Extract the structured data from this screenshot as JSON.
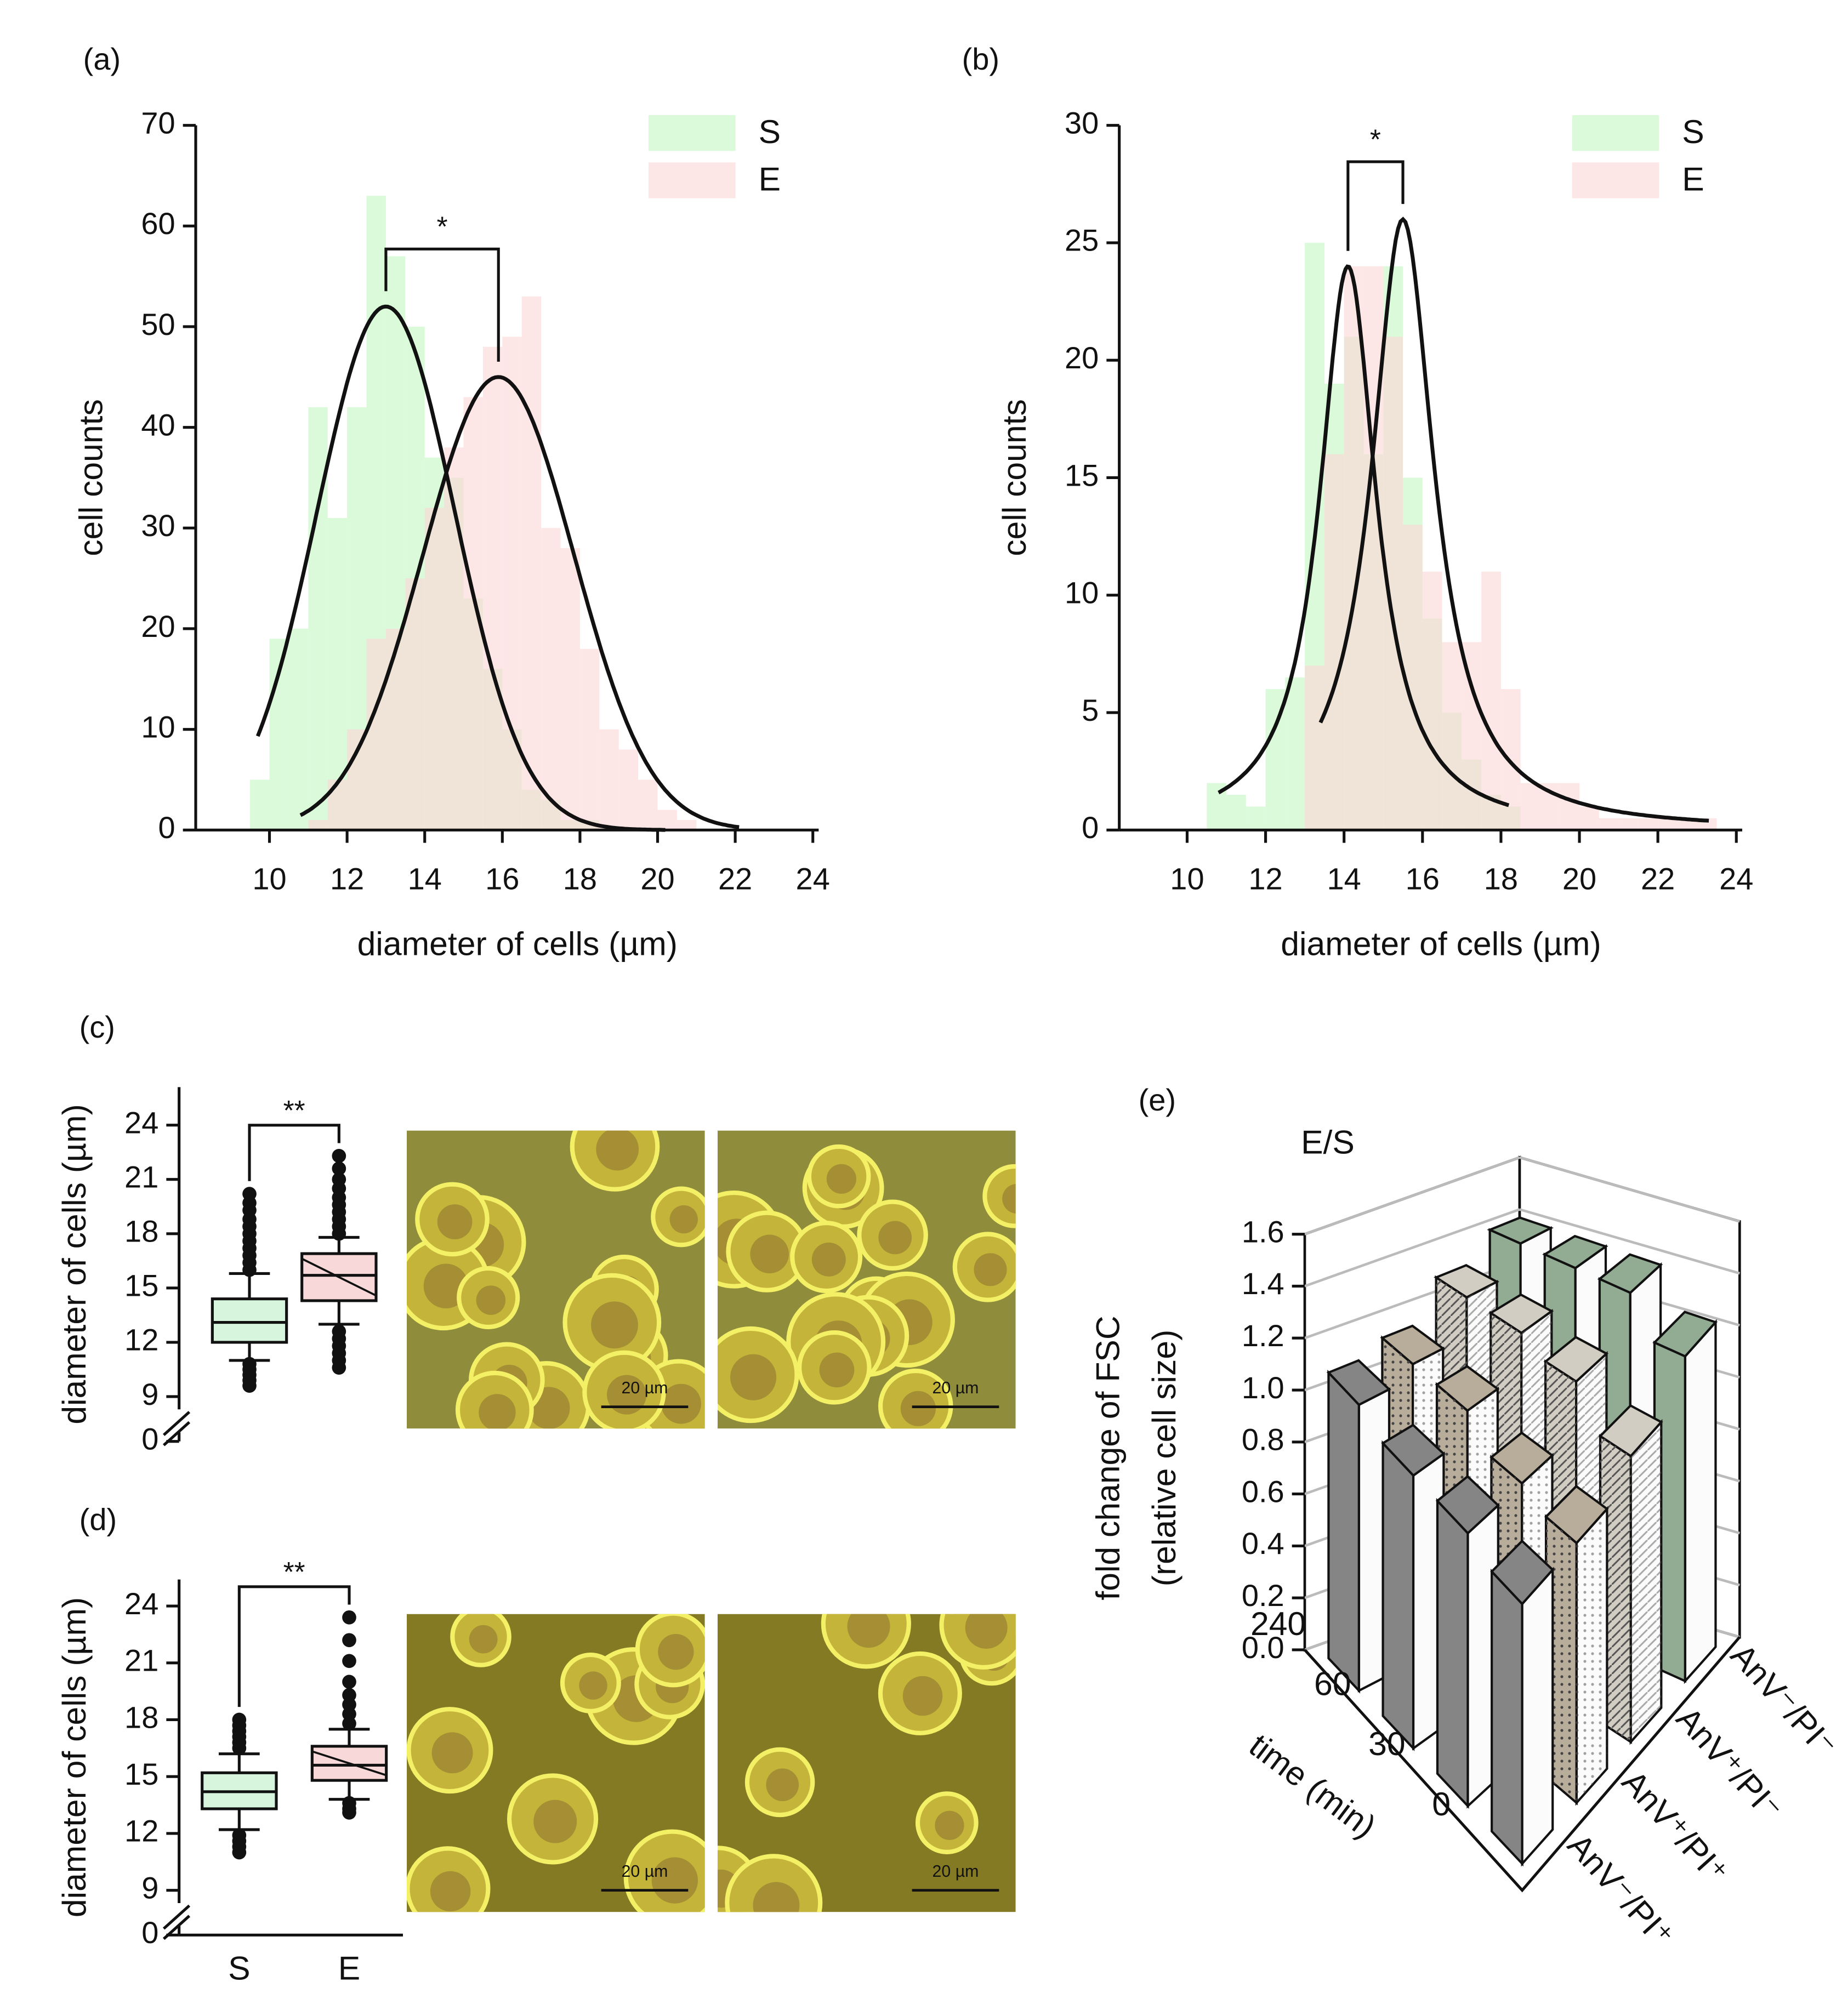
{
  "chart_data": [
    {
      "type": "histogram",
      "label": "(a)",
      "xlabel": "diameter of cells (µm)",
      "ylabel": "cell counts",
      "bins": [
        9.5,
        10,
        10.5,
        11,
        11.5,
        12,
        12.5,
        13,
        13.5,
        14,
        14.5,
        15,
        15.5,
        16,
        16.5,
        17,
        17.5,
        18,
        18.5,
        19,
        19.5,
        20,
        20.5,
        21
      ],
      "series": [
        {
          "name": "S",
          "color": "#c6f7c6",
          "values": [
            5,
            19,
            20,
            42,
            31,
            42,
            63,
            57,
            50,
            37,
            35,
            23,
            16,
            10,
            4,
            3,
            1,
            1,
            0,
            0,
            0,
            0,
            0
          ],
          "fit": {
            "shape": "gaussian",
            "center": 13,
            "peak": 52,
            "width": 1.78,
            "range": [
              9.7,
              20.2
            ]
          }
        },
        {
          "name": "E",
          "color": "#fcd9d9",
          "values": [
            0,
            0,
            0,
            1,
            5,
            10,
            19,
            20,
            25,
            32,
            38,
            43,
            48,
            49,
            53,
            30,
            28,
            18,
            10,
            8,
            5,
            2,
            1
          ],
          "fit": {
            "shape": "gaussian",
            "center": 15.9,
            "peak": 45,
            "width": 1.95,
            "range": [
              10.8,
              22.1
            ]
          }
        }
      ],
      "xlim": [
        8.1,
        24.15
      ],
      "ylim": [
        0,
        70
      ],
      "xticks": [
        10,
        12,
        14,
        16,
        18,
        20,
        22,
        24
      ],
      "yticks": [
        0,
        10,
        20,
        30,
        40,
        50,
        60,
        70
      ],
      "legend": "upper right",
      "significance": "*"
    },
    {
      "type": "histogram",
      "label": "(b)",
      "xlabel": "diameter of cells (µm)",
      "ylabel": "cell counts",
      "bins": [
        10.5,
        11,
        11.5,
        12,
        12.5,
        13,
        13.5,
        14,
        14.5,
        15,
        15.5,
        16,
        16.5,
        17,
        17.5,
        18,
        18.5,
        19,
        19.5,
        20,
        20.5,
        21,
        21.5,
        22,
        22.5,
        23,
        23.5
      ],
      "series": [
        {
          "name": "S",
          "color": "#c6f7c6",
          "values": [
            2,
            1.5,
            1,
            6,
            6.5,
            25,
            19,
            21,
            16,
            24,
            15,
            9,
            5,
            3,
            1.5,
            1,
            0,
            0,
            0,
            0,
            0,
            0,
            0,
            0,
            0,
            0
          ],
          "fit": {
            "shape": "lorentzian",
            "center": 14.1,
            "peak": 24,
            "width": 0.88,
            "range": [
              10.8,
              18.2
            ]
          }
        },
        {
          "name": "E",
          "color": "#fcd9d9",
          "values": [
            0,
            0,
            0,
            0,
            0,
            7,
            16,
            24,
            24,
            21,
            13,
            11,
            8,
            8,
            11,
            6,
            2,
            2,
            2,
            1,
            0.5,
            0.5,
            0.5,
            0.5,
            0.5,
            0.5
          ],
          "fit": {
            "shape": "lorentzian",
            "center": 15.5,
            "peak": 26,
            "width": 0.97,
            "range": [
              13.4,
              23.3
            ]
          }
        }
      ],
      "xlim": [
        8.27,
        24.15
      ],
      "ylim": [
        0,
        30
      ],
      "xticks": [
        10,
        12,
        14,
        16,
        18,
        20,
        22,
        24
      ],
      "yticks": [
        0,
        5,
        10,
        15,
        20,
        25,
        30
      ],
      "legend": "upper right",
      "significance": "*"
    },
    {
      "type": "box",
      "label": "(c)",
      "ylabel": "diameter of cells (µm)",
      "categories": [
        null,
        null
      ],
      "boxes": [
        {
          "min": 11.0,
          "q1": 12.0,
          "median": 13.1,
          "q3": 14.4,
          "max": 15.8,
          "color": "#d6f5dc",
          "outliers": [
            16.0,
            16.4,
            16.8,
            17.2,
            17.6,
            18.0,
            18.4,
            18.8,
            19.3,
            19.7,
            20.2,
            10.8,
            10.5,
            10.2,
            9.9,
            9.6
          ]
        },
        {
          "min": 13.0,
          "q1": 14.3,
          "median": 15.7,
          "q3": 16.9,
          "max": 17.8,
          "color": "#f8d8d8",
          "hatch": true,
          "outliers": [
            18.0,
            18.4,
            18.8,
            19.2,
            19.6,
            20.0,
            20.5,
            21.0,
            21.6,
            22.3,
            12.6,
            12.2,
            11.8,
            11.4,
            11.0,
            10.6
          ]
        }
      ],
      "ylim": [
        9,
        26.1
      ],
      "yticks": [
        0,
        9,
        12,
        15,
        18,
        21,
        24
      ],
      "axis_break": true,
      "significance": "**",
      "images": [
        {
          "scale_bar": "20 µm"
        },
        {
          "scale_bar": "20 µm"
        }
      ]
    },
    {
      "type": "box",
      "label": "(d)",
      "ylabel": "diameter of cells (µm)",
      "categories": [
        "S",
        "E"
      ],
      "boxes": [
        {
          "min": 12.2,
          "q1": 13.3,
          "median": 14.2,
          "q3": 15.2,
          "max": 16.2,
          "color": "#d6f5dc",
          "outliers": [
            16.5,
            16.8,
            17.1,
            17.4,
            17.7,
            18.0,
            11.9,
            11.6,
            11.3,
            11.0
          ]
        },
        {
          "min": 13.8,
          "q1": 14.8,
          "median": 15.6,
          "q3": 16.6,
          "max": 17.5,
          "color": "#f8d8d8",
          "hatch": true,
          "outliers": [
            17.8,
            18.3,
            18.8,
            19.3,
            20.0,
            21.1,
            22.2,
            23.4,
            13.6,
            13.3,
            13.1
          ]
        }
      ],
      "ylim": [
        9,
        25.4
      ],
      "yticks": [
        0,
        9,
        12,
        15,
        18,
        21,
        24
      ],
      "axis_break": true,
      "significance": "**",
      "images": [
        {
          "scale_bar": "20 µm"
        },
        {
          "scale_bar": "20 µm"
        }
      ]
    },
    {
      "type": "bar3d",
      "label": "(e)",
      "title": "E/S",
      "ylabel": [
        "fold change of FSC",
        "(relative cell size)"
      ],
      "xlabel": "time (min)",
      "categories": [
        "0",
        "30",
        "60",
        "240"
      ],
      "series": [
        {
          "name": "AnV⁻/PI⁺",
          "color": "#858585",
          "pattern": "solid",
          "values": [
            1.0,
            1.05,
            1.05,
            1.1
          ]
        },
        {
          "name": "AnV⁺/PI⁺",
          "color": "#b8ad9b",
          "pattern": "dots",
          "values": [
            1.0,
            1.05,
            1.15,
            1.15
          ]
        },
        {
          "name": "AnV⁺/PI⁻",
          "color": "#d2cdc2",
          "pattern": "diagonal",
          "values": [
            1.1,
            1.25,
            1.3,
            1.3
          ]
        },
        {
          "name": "AnV⁻/PI⁻",
          "color": "#92ab93",
          "pattern": "solid",
          "values": [
            1.25,
            1.4,
            1.4,
            1.4
          ]
        }
      ],
      "ylim": [
        0,
        1.6
      ],
      "yticks": [
        {
          "value": 0,
          "label": "0.0"
        },
        0.2,
        0.4,
        0.6,
        0.8,
        {
          "value": 1,
          "label": "1.0"
        },
        1.2,
        1.4,
        1.6
      ],
      "grid": true
    }
  ]
}
